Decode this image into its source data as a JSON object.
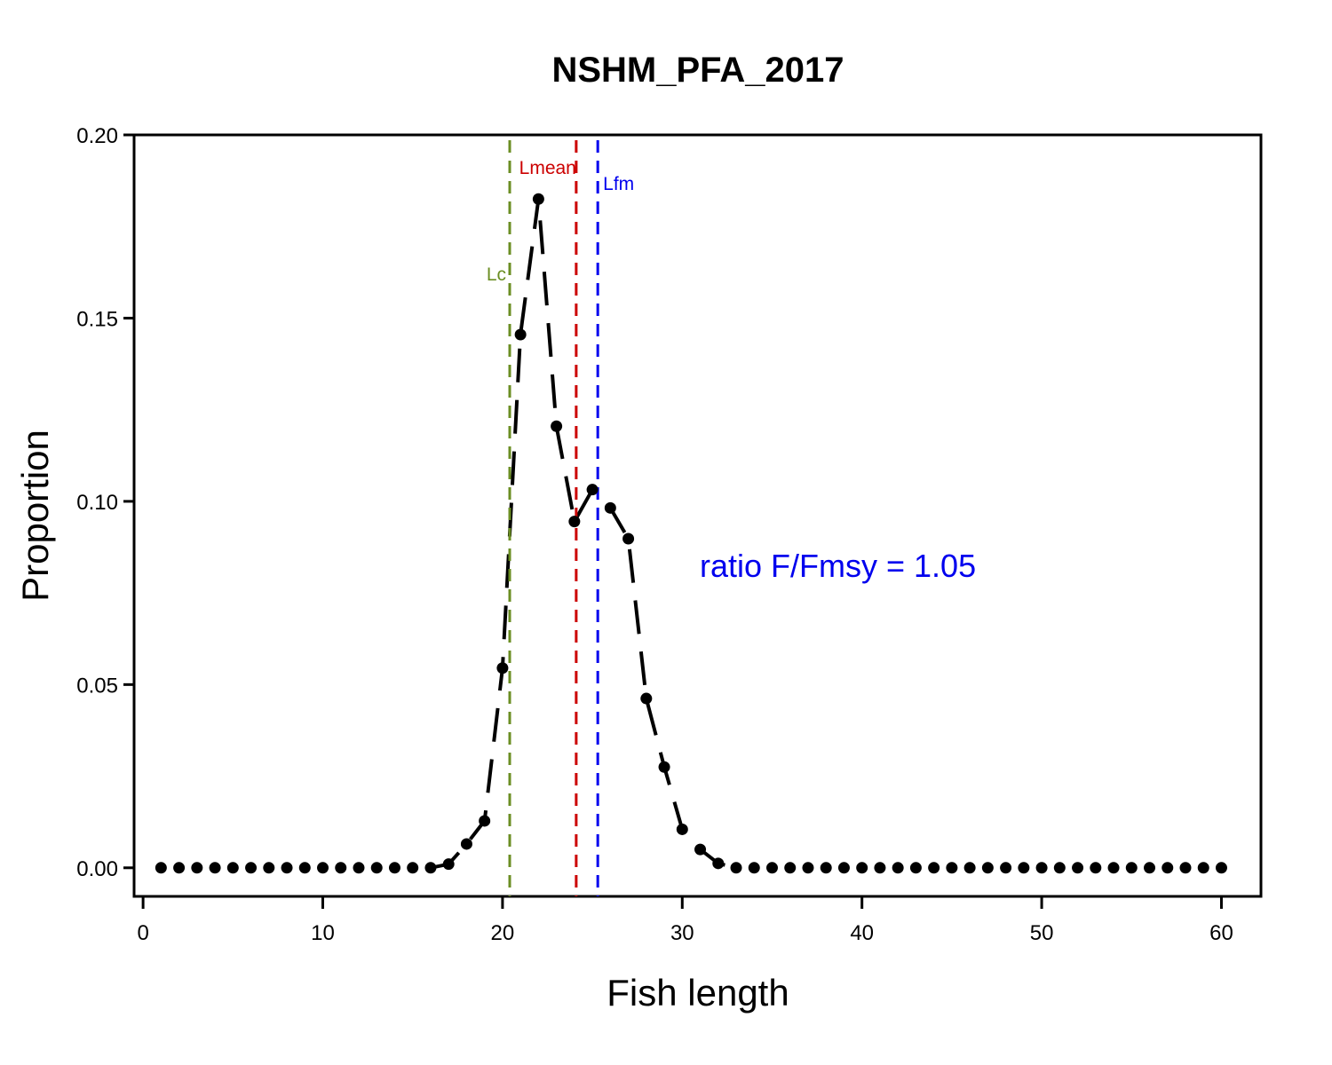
{
  "chart_data": {
    "type": "scatter",
    "title": "NSHM_PFA_2017",
    "xlabel": "Fish length",
    "ylabel": "Proportion",
    "xlim": [
      -0.5,
      62.2
    ],
    "ylim": [
      -0.0078,
      0.2
    ],
    "x_ticks": [
      0,
      10,
      20,
      30,
      40,
      50,
      60
    ],
    "x_tick_labels": [
      "0",
      "10",
      "20",
      "30",
      "40",
      "50",
      "60"
    ],
    "y_ticks": [
      0.0,
      0.05,
      0.1,
      0.15,
      0.2
    ],
    "y_tick_labels": [
      "0.00",
      "0.05",
      "0.10",
      "0.15",
      "0.20"
    ],
    "grid": false,
    "series": [
      {
        "x": [
          1,
          2,
          3,
          4,
          5,
          6,
          7,
          8,
          9,
          10,
          11,
          12,
          13,
          14,
          15,
          16,
          17,
          18,
          19,
          20,
          21,
          22,
          23,
          24,
          25,
          26,
          27,
          28,
          29,
          30,
          31,
          32,
          33,
          34,
          35,
          36,
          37,
          38,
          39,
          40,
          41,
          42,
          43,
          44,
          45,
          46,
          47,
          48,
          49,
          50,
          51,
          52,
          53,
          54,
          55,
          56,
          57,
          58,
          59,
          60
        ],
        "values": [
          0,
          0,
          0,
          0,
          0,
          0,
          0,
          0,
          0,
          0,
          0,
          0,
          0,
          0,
          0,
          0,
          0.001,
          0.0065,
          0.0128,
          0.0545,
          0.1455,
          0.1825,
          0.1205,
          0.0945,
          0.1032,
          0.0982,
          0.0898,
          0.0462,
          0.0275,
          0.0105,
          0.005,
          0.0012,
          0,
          0,
          0,
          0,
          0,
          0,
          0,
          0,
          0,
          0,
          0,
          0,
          0,
          0,
          0,
          0,
          0,
          0,
          0,
          0,
          0,
          0,
          0,
          0,
          0,
          0,
          0,
          0
        ],
        "color": "#000000",
        "fit_line": "dashed-black"
      }
    ],
    "vertical_lines": [
      {
        "label": "Lc",
        "x": 20.4,
        "color": "#6B8E23"
      },
      {
        "label": "Lmean",
        "x": 24.1,
        "color": "#CC0000"
      },
      {
        "label": "Lfm",
        "x": 25.3,
        "color": "#0000EE"
      }
    ],
    "annotation": {
      "text": "ratio F/Fmsy = 1.05",
      "color": "#0000EE"
    }
  }
}
